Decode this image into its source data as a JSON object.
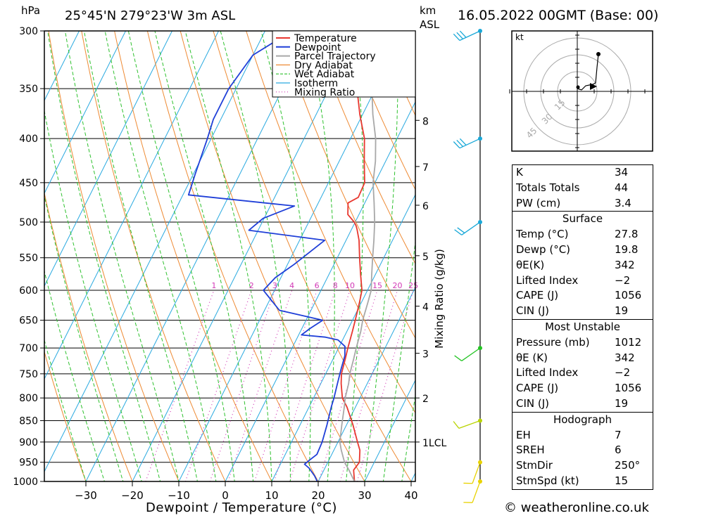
{
  "header": {
    "left_unit": "hPa",
    "location": "25°45'N  279°23'W  3m  ASL",
    "alt_unit_1": "km",
    "alt_unit_2": "ASL",
    "date": "16.05.2022  00GMT  (Base: 00)"
  },
  "footer": {
    "copyright": "© weatheronline.co.uk"
  },
  "hodograph": {
    "unit": "kt",
    "ring_labels": [
      "15",
      "30",
      "45"
    ]
  },
  "colors": {
    "temperature": "#e8372f",
    "dewpoint": "#1f3fd8",
    "parcel": "#a8a8a8",
    "dry_adiabat": "#ee8a33",
    "wet_adiabat": "#2ec12e",
    "isotherm": "#2aa9e0",
    "mixing_ratio": "#d238b6"
  },
  "chart_data": {
    "type": "line",
    "xlabel": "Dewpoint / Temperature (°C)",
    "ylabel": "hPa",
    "xlim": [
      -40,
      40
    ],
    "ylim": [
      1000,
      300
    ],
    "y_scale": "log",
    "x_ticks": [
      "−30",
      "−20",
      "−10",
      "0",
      "10",
      "20",
      "30",
      "40"
    ],
    "pressure_ticks": [
      "300",
      "350",
      "400",
      "450",
      "500",
      "550",
      "600",
      "650",
      "700",
      "750",
      "800",
      "850",
      "900",
      "950",
      "1000"
    ],
    "km_ticks": [
      {
        "label": "8",
        "p": 381
      },
      {
        "label": "7",
        "p": 431
      },
      {
        "label": "6",
        "p": 478
      },
      {
        "label": "5",
        "p": 547
      },
      {
        "label": "4",
        "p": 626
      },
      {
        "label": "3",
        "p": 710
      },
      {
        "label": "2",
        "p": 800
      },
      {
        "label": "1LCL",
        "p": 900
      }
    ],
    "mixing_ratio_label": "Mixing Ratio (g/kg)",
    "mixing_ratio_values": [
      "1",
      "2",
      "3",
      "4",
      "6",
      "8",
      "10",
      "15",
      "20",
      "25"
    ],
    "legend": [
      "Temperature",
      "Dewpoint",
      "Parcel Trajectory",
      "Dry Adiabat",
      "Wet Adiabat",
      "Isotherm",
      "Mixing Ratio"
    ],
    "legend_position": "top-right",
    "series": [
      {
        "name": "Temperature",
        "points": [
          [
            27.8,
            1000
          ],
          [
            26.4,
            970
          ],
          [
            26.8,
            950
          ],
          [
            25.6,
            920
          ],
          [
            24.2,
            900
          ],
          [
            21.4,
            860
          ],
          [
            18.2,
            820
          ],
          [
            16.2,
            800
          ],
          [
            14.4,
            770
          ],
          [
            13.4,
            750
          ],
          [
            12.6,
            720
          ],
          [
            12.0,
            700
          ],
          [
            11.2,
            670
          ],
          [
            10.6,
            650
          ],
          [
            9.6,
            620
          ],
          [
            8.8,
            600
          ],
          [
            6.8,
            575
          ],
          [
            4.8,
            550
          ],
          [
            2.8,
            525
          ],
          [
            1.2,
            510
          ],
          [
            0.6,
            505
          ],
          [
            -0.2,
            500
          ],
          [
            -2.4,
            490
          ],
          [
            -3.6,
            475
          ],
          [
            -2.0,
            468
          ],
          [
            -2.2,
            450
          ],
          [
            -4.6,
            425
          ],
          [
            -7.0,
            400
          ],
          [
            -10.6,
            375
          ],
          [
            -14.0,
            350
          ],
          [
            -17.0,
            330
          ],
          [
            -19.2,
            312
          ],
          [
            -21.6,
            300
          ]
        ]
      },
      {
        "name": "Dewpoint",
        "points": [
          [
            19.8,
            1000
          ],
          [
            18.6,
            985
          ],
          [
            16.6,
            965
          ],
          [
            15.2,
            955
          ],
          [
            15.8,
            945
          ],
          [
            16.8,
            930
          ],
          [
            16.6,
            900
          ],
          [
            15.8,
            860
          ],
          [
            14.8,
            820
          ],
          [
            14.4,
            800
          ],
          [
            13.6,
            770
          ],
          [
            12.8,
            740
          ],
          [
            12.2,
            715
          ],
          [
            11.2,
            697
          ],
          [
            9.0,
            685
          ],
          [
            6.0,
            680
          ],
          [
            0.6,
            676
          ],
          [
            1.8,
            664
          ],
          [
            3.6,
            650
          ],
          [
            -6.8,
            633
          ],
          [
            -12.4,
            600
          ],
          [
            -11.2,
            580
          ],
          [
            -8.6,
            560
          ],
          [
            -4.6,
            525
          ],
          [
            -22.0,
            511
          ],
          [
            -20.2,
            495
          ],
          [
            -14.8,
            479
          ],
          [
            -38.8,
            465
          ],
          [
            -39.6,
            440
          ],
          [
            -40.8,
            400
          ],
          [
            -41.6,
            380
          ],
          [
            -41.6,
            350
          ],
          [
            -40.0,
            320
          ],
          [
            -34.2,
            300
          ]
        ]
      },
      {
        "name": "Parcel Trajectory",
        "points": [
          [
            27.8,
            1000
          ],
          [
            25.4,
            970
          ],
          [
            23.6,
            950
          ],
          [
            21.6,
            920
          ],
          [
            20.4,
            900
          ],
          [
            19.0,
            860
          ],
          [
            17.6,
            820
          ],
          [
            16.8,
            800
          ],
          [
            16.0,
            770
          ],
          [
            15.2,
            750
          ],
          [
            14.4,
            720
          ],
          [
            13.8,
            700
          ],
          [
            13.0,
            670
          ],
          [
            12.2,
            650
          ],
          [
            11.4,
            620
          ],
          [
            10.8,
            600
          ],
          [
            9.2,
            575
          ],
          [
            7.6,
            550
          ],
          [
            6.0,
            525
          ],
          [
            4.2,
            500
          ],
          [
            2.0,
            475
          ],
          [
            -0.4,
            450
          ],
          [
            -2.2,
            425
          ],
          [
            -4.6,
            400
          ],
          [
            -7.8,
            375
          ],
          [
            -10.8,
            350
          ],
          [
            -13.6,
            330
          ],
          [
            -16.2,
            312
          ],
          [
            -17.8,
            300
          ]
        ]
      }
    ]
  },
  "wind_profile": {
    "barbs": [
      {
        "p": 1000,
        "dir": 200,
        "kt": 10
      },
      {
        "p": 950,
        "dir": 200,
        "kt": 10
      },
      {
        "p": 850,
        "dir": 250,
        "kt": 10
      },
      {
        "p": 700,
        "dir": 235,
        "kt": 10
      },
      {
        "p": 500,
        "dir": 235,
        "kt": 20
      },
      {
        "p": 400,
        "dir": 245,
        "kt": 30
      },
      {
        "p": 300,
        "dir": 245,
        "kt": 30
      }
    ]
  },
  "stats": {
    "indices": [
      {
        "label": "K",
        "value": "34"
      },
      {
        "label": "Totals Totals",
        "value": "44"
      },
      {
        "label": "PW (cm)",
        "value": "3.4"
      }
    ],
    "surface": {
      "title": "Surface",
      "rows": [
        {
          "label": "Temp (°C)",
          "value": "27.8"
        },
        {
          "label": "Dewp (°C)",
          "value": "19.8"
        },
        {
          "label": "θE(K)",
          "value": "342"
        },
        {
          "label": "Lifted Index",
          "value": "−2"
        },
        {
          "label": "CAPE (J)",
          "value": "1056"
        },
        {
          "label": "CIN (J)",
          "value": "19"
        }
      ]
    },
    "most_unstable": {
      "title": "Most Unstable",
      "rows": [
        {
          "label": "Pressure (mb)",
          "value": "1012"
        },
        {
          "label": "θE (K)",
          "value": "342"
        },
        {
          "label": "Lifted Index",
          "value": "−2"
        },
        {
          "label": "CAPE (J)",
          "value": "1056"
        },
        {
          "label": "CIN (J)",
          "value": "19"
        }
      ]
    },
    "hodograph": {
      "title": "Hodograph",
      "rows": [
        {
          "label": "EH",
          "value": "7"
        },
        {
          "label": "SREH",
          "value": "6"
        },
        {
          "label": "StmDir",
          "value": "250°"
        },
        {
          "label": "StmSpd (kt)",
          "value": "15"
        }
      ]
    }
  }
}
